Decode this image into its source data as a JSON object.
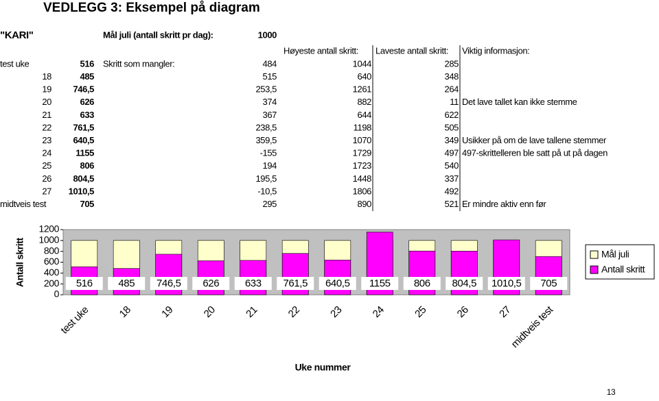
{
  "title": "VEDLEGG 3: Eksempel på diagram",
  "table": {
    "name": "\"KARI\"",
    "goal_label": "Mål juli (antall skritt pr dag):",
    "goal_value": "1000",
    "columns": [
      "Høyeste antall skritt:",
      "Laveste antall skritt:",
      "Viktig informasjon:"
    ],
    "rows": [
      {
        "week": "test uke",
        "steps": "516",
        "label": "Skritt som mangler:",
        "missing": "484",
        "highest": "1044",
        "lowest": "285"
      },
      {
        "week": "18",
        "steps": "485",
        "missing": "515",
        "highest": "640",
        "lowest": "348"
      },
      {
        "week": "19",
        "steps": "746,5",
        "missing": "253,5",
        "highest": "1261",
        "lowest": "264"
      },
      {
        "week": "20",
        "steps": "626",
        "missing": "374",
        "highest": "882",
        "lowest": "11",
        "info": "Det lave tallet kan ikke stemme"
      },
      {
        "week": "21",
        "steps": "633",
        "missing": "367",
        "highest": "644",
        "lowest": "622"
      },
      {
        "week": "22",
        "steps": "761,5",
        "missing": "238,5",
        "highest": "1198",
        "lowest": "505"
      },
      {
        "week": "23",
        "steps": "640,5",
        "missing": "359,5",
        "highest": "1070",
        "lowest": "349",
        "info": "Usikker på om de lave tallene stemmer"
      },
      {
        "week": "24",
        "steps": "1155",
        "missing": "-155",
        "highest": "1729",
        "lowest": "497",
        "info": "497-skrittelleren ble satt på ut på dagen"
      },
      {
        "week": "25",
        "steps": "806",
        "missing": "194",
        "highest": "1723",
        "lowest": "540"
      },
      {
        "week": "26",
        "steps": "804,5",
        "missing": "195,5",
        "highest": "1448",
        "lowest": "337"
      },
      {
        "week": "27",
        "steps": "1010,5",
        "missing": "-10,5",
        "highest": "1806",
        "lowest": "492"
      },
      {
        "week": "midtveis test",
        "steps": "705",
        "missing": "295",
        "highest": "890",
        "lowest": "521",
        "info": "Er mindre aktiv enn før"
      }
    ]
  },
  "chart_data": {
    "type": "bar",
    "x_label": "Uke nummer",
    "y_label": "Antall skritt",
    "categories": [
      "test uke",
      "18",
      "19",
      "20",
      "21",
      "22",
      "23",
      "24",
      "25",
      "26",
      "27",
      "midtveis test"
    ],
    "series": [
      {
        "name": "Mål juli",
        "color": "#ffffcc",
        "values": [
          1000,
          1000,
          1000,
          1000,
          1000,
          1000,
          1000,
          1000,
          1000,
          1000,
          1000,
          1000
        ]
      },
      {
        "name": "Antall skritt",
        "color": "#ff00ff",
        "values": [
          516,
          485,
          746.5,
          626,
          633,
          761.5,
          640.5,
          1155,
          806,
          804.5,
          1010.5,
          705
        ],
        "value_labels": [
          "516",
          "485",
          "746,5",
          "626",
          "633",
          "761,5",
          "640,5",
          "1155",
          "806",
          "804,5",
          "1010,5",
          "705"
        ]
      }
    ],
    "ylim": [
      0,
      1200
    ],
    "yticks": [
      0,
      200,
      400,
      600,
      800,
      1000,
      1200
    ],
    "legend": "right",
    "plot_background": "#c0c0c0"
  },
  "page_number": "13"
}
